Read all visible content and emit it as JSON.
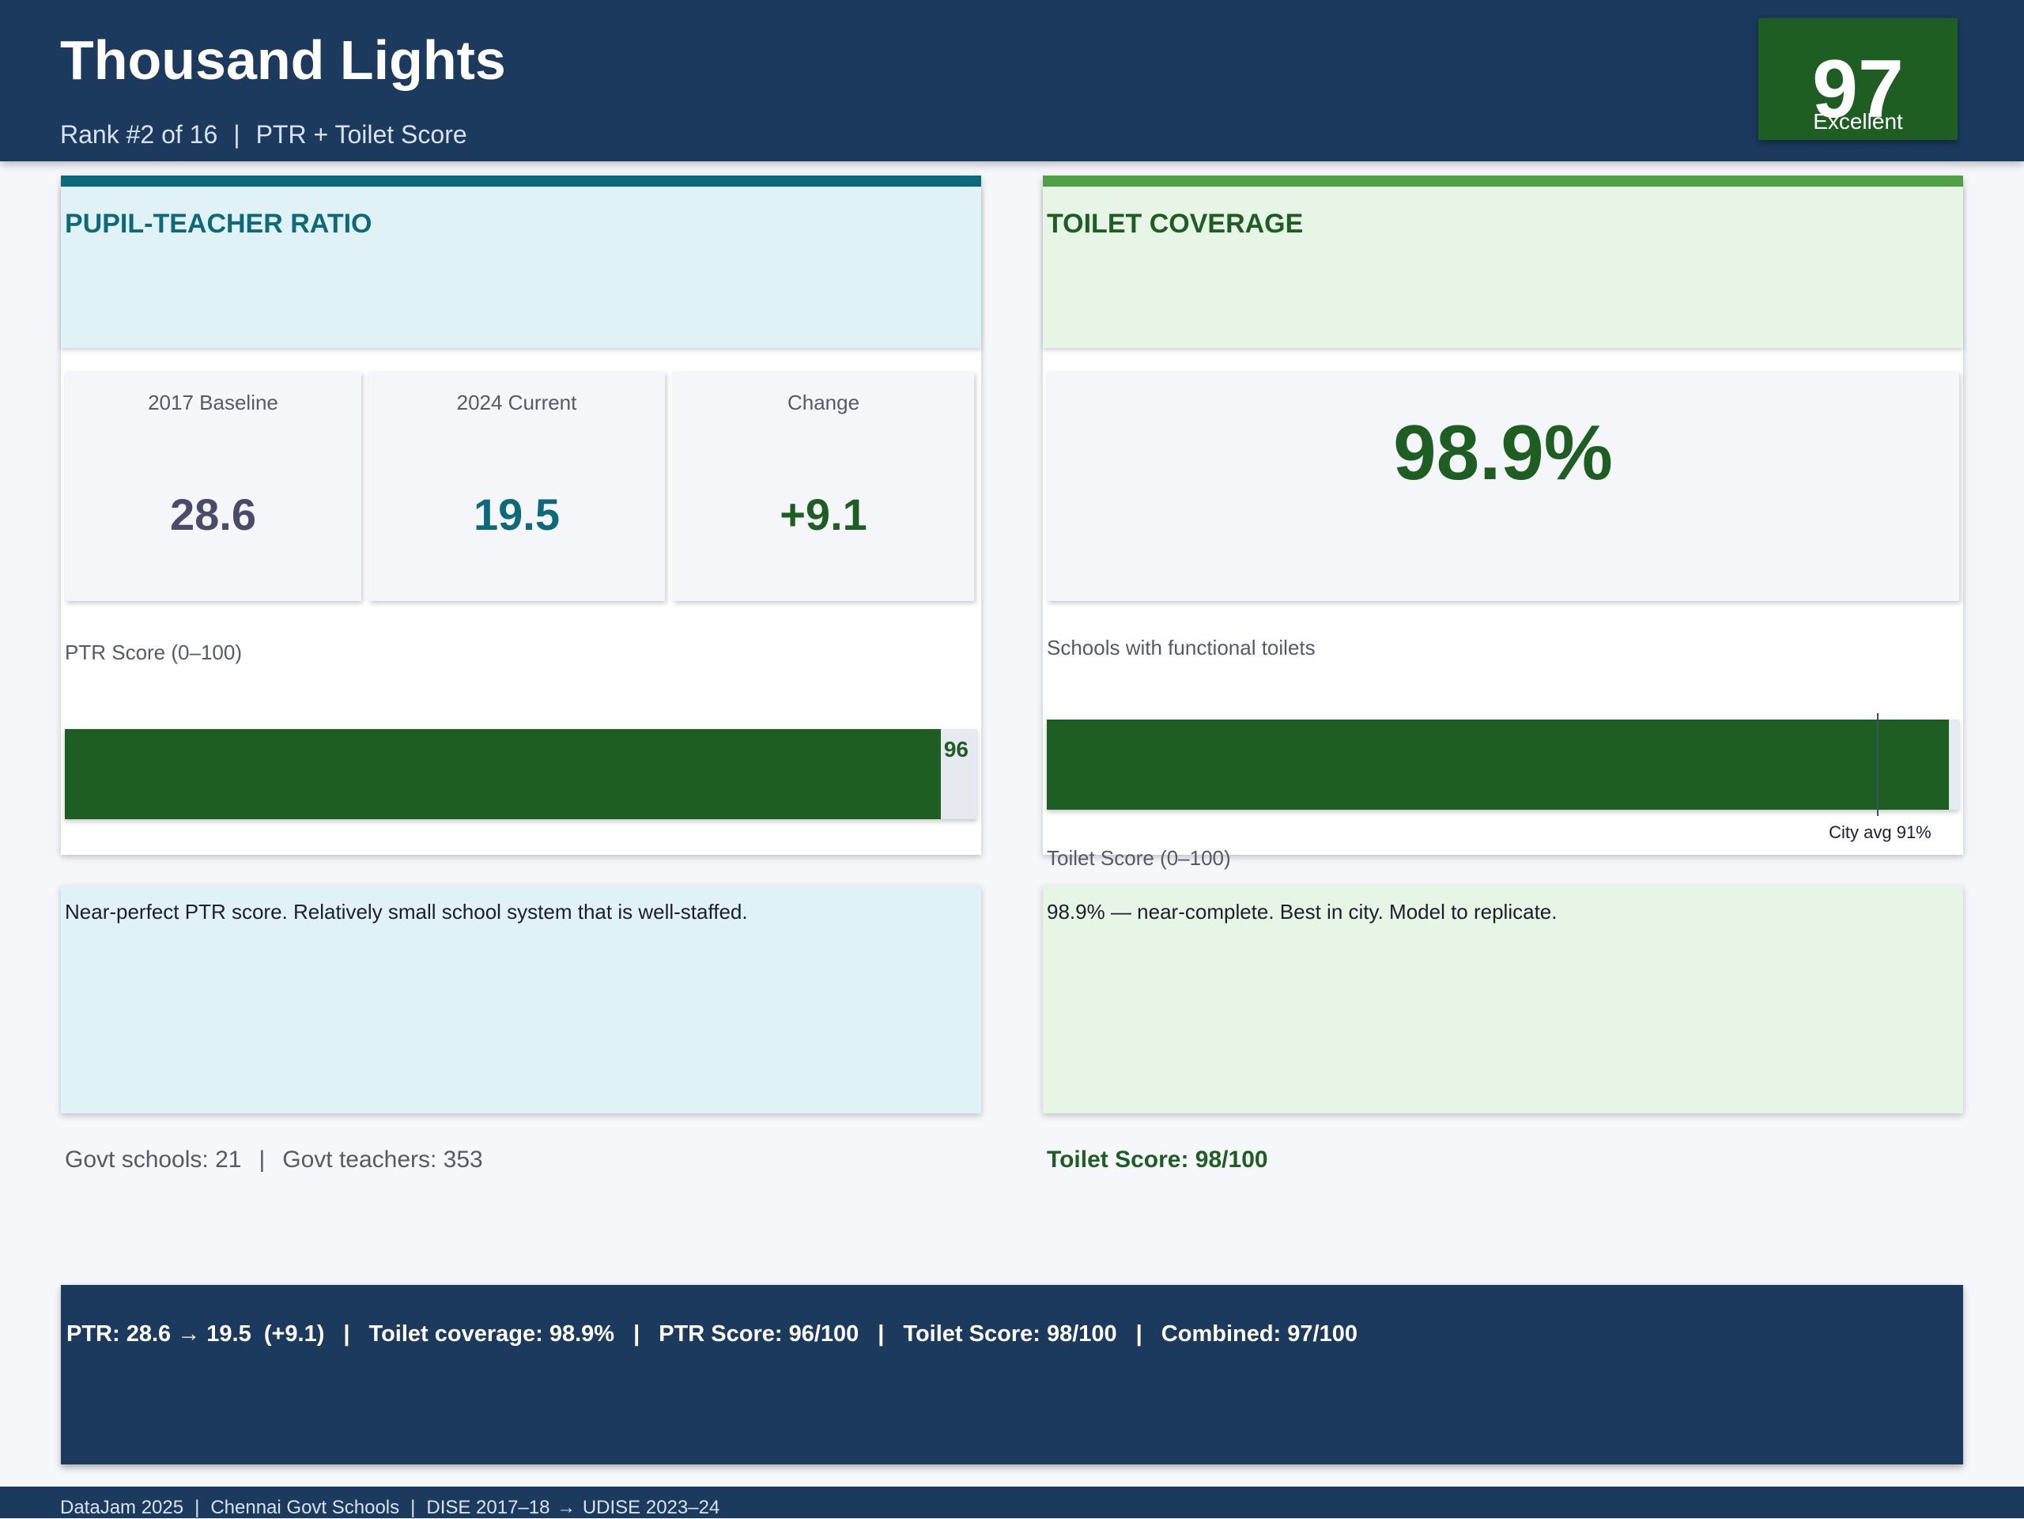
{
  "header": {
    "title": "Thousand Lights",
    "rank": "Rank #2 of 16",
    "separator": "|",
    "score_type": "PTR + Toilet Score",
    "badge_value": "97",
    "badge_label": "Excellent",
    "badge_color": "#1e5e22",
    "bg_color": "#1b3a5e"
  },
  "ptr_panel": {
    "title": "PUPIL-TEACHER RATIO",
    "accent_color": "#0e6a7a",
    "stats": [
      {
        "label": "2017 Baseline",
        "value": "28.6"
      },
      {
        "label": "2024 Current",
        "value": "19.5"
      },
      {
        "label": "Change",
        "value": "+9.1"
      }
    ],
    "bar_caption": "PTR Score (0–100)",
    "bar_value": 96,
    "bar_label": "96",
    "bar_max": 100,
    "note": "Near-perfect PTR score. Relatively small school system that is well-staffed.",
    "footnote": {
      "schools": "Govt schools: 21",
      "separator": "|",
      "teachers": "Govt teachers: 353"
    }
  },
  "toilet_panel": {
    "title": "TOILET COVERAGE",
    "accent_color": "#4fa047",
    "coverage_value": "98.9%",
    "caption": "Schools with functional toilets",
    "bar_value": 98.9,
    "bar_max": 100,
    "city_avg": 91,
    "city_avg_label": "City avg 91%",
    "bar_caption": "Toilet Score (0–100)",
    "note": "98.9% — near-complete. Best in city. Model to replicate.",
    "footnote": "Toilet Score: 98/100"
  },
  "summary": {
    "items": [
      "PTR: 28.6 → 19.5  (+9.1)",
      "Toilet coverage: 98.9%",
      "PTR Score: 96/100",
      "Toilet Score: 98/100",
      "Combined: 97/100"
    ],
    "separator": "|"
  },
  "footer": {
    "event": "DataJam 2025",
    "separator": "|",
    "scope": "Chennai Govt Schools",
    "source_from": "DISE 2017–18",
    "arrow": "→",
    "source_to": "UDISE 2023–24"
  }
}
